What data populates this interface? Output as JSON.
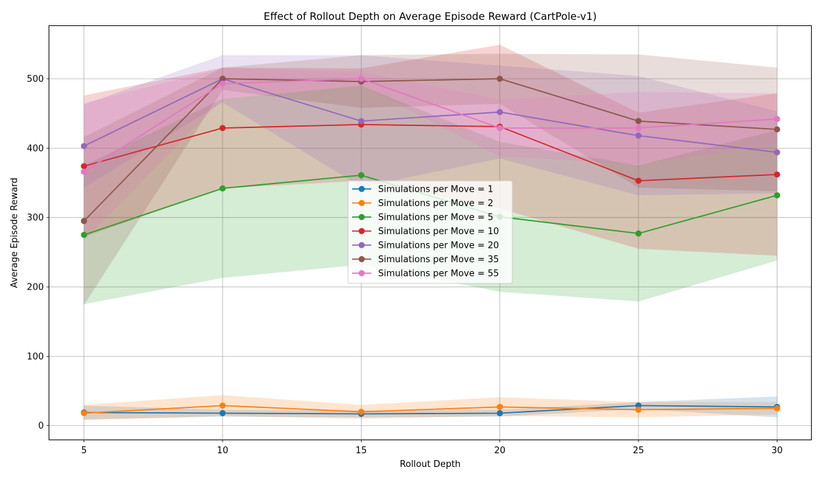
{
  "chart_data": {
    "type": "line",
    "title": "Effect of Rollout Depth on Average Episode Reward (CartPole-v1)",
    "xlabel": "Rollout Depth",
    "ylabel": "Average Episode Reward",
    "x": [
      5,
      10,
      15,
      20,
      25,
      30
    ],
    "xticks": [
      5,
      10,
      15,
      20,
      25,
      30
    ],
    "yticks": [
      0,
      100,
      200,
      300,
      400,
      500
    ],
    "xlim": [
      3.75,
      31.25
    ],
    "ylim": [
      -20,
      576
    ],
    "grid": true,
    "legend_position": "center",
    "shaded_band": "±1 std",
    "series": [
      {
        "name": "Simulations per Move = 1",
        "color": "#1f77b4",
        "values": [
          19,
          18,
          17,
          18,
          29,
          27
        ],
        "lower": [
          9,
          13,
          12,
          13,
          24,
          12
        ],
        "upper": [
          29,
          23,
          22,
          23,
          34,
          42
        ]
      },
      {
        "name": "Simulations per Move = 2",
        "color": "#ff7f0e",
        "values": [
          18,
          29,
          20,
          27,
          23,
          25
        ],
        "lower": [
          8,
          14,
          10,
          14,
          12,
          16
        ],
        "upper": [
          30,
          44,
          30,
          41,
          34,
          34
        ]
      },
      {
        "name": "Simulations per Move = 5",
        "color": "#2ca02c",
        "values": [
          275,
          342,
          361,
          301,
          277,
          332
        ],
        "lower": [
          175,
          213,
          232,
          193,
          179,
          238
        ],
        "upper": [
          375,
          471,
          490,
          409,
          375,
          426
        ]
      },
      {
        "name": "Simulations per Move = 10",
        "color": "#d62728",
        "values": [
          374,
          429,
          434,
          431,
          353,
          362
        ],
        "lower": [
          272,
          342,
          353,
          313,
          255,
          245
        ],
        "upper": [
          476,
          516,
          515,
          549,
          451,
          479
        ]
      },
      {
        "name": "Simulations per Move = 20",
        "color": "#9467bd",
        "values": [
          403,
          500,
          439,
          452,
          418,
          394
        ],
        "lower": [
          343,
          466,
          344,
          385,
          332,
          335
        ],
        "upper": [
          463,
          534,
          534,
          519,
          504,
          453
        ]
      },
      {
        "name": "Simulations per Move = 35",
        "color": "#8c564b",
        "values": [
          295,
          500,
          496,
          500,
          439,
          427
        ],
        "lower": [
          174,
          484,
          458,
          464,
          343,
          338
        ],
        "upper": [
          416,
          516,
          534,
          536,
          535,
          516
        ]
      },
      {
        "name": "Simulations per Move = 55",
        "color": "#e377c2",
        "values": [
          366,
          493,
          500,
          429,
          429,
          442
        ],
        "lower": [
          267,
          471,
          490,
          388,
          377,
          405
        ],
        "upper": [
          465,
          515,
          510,
          470,
          481,
          479
        ]
      }
    ]
  }
}
